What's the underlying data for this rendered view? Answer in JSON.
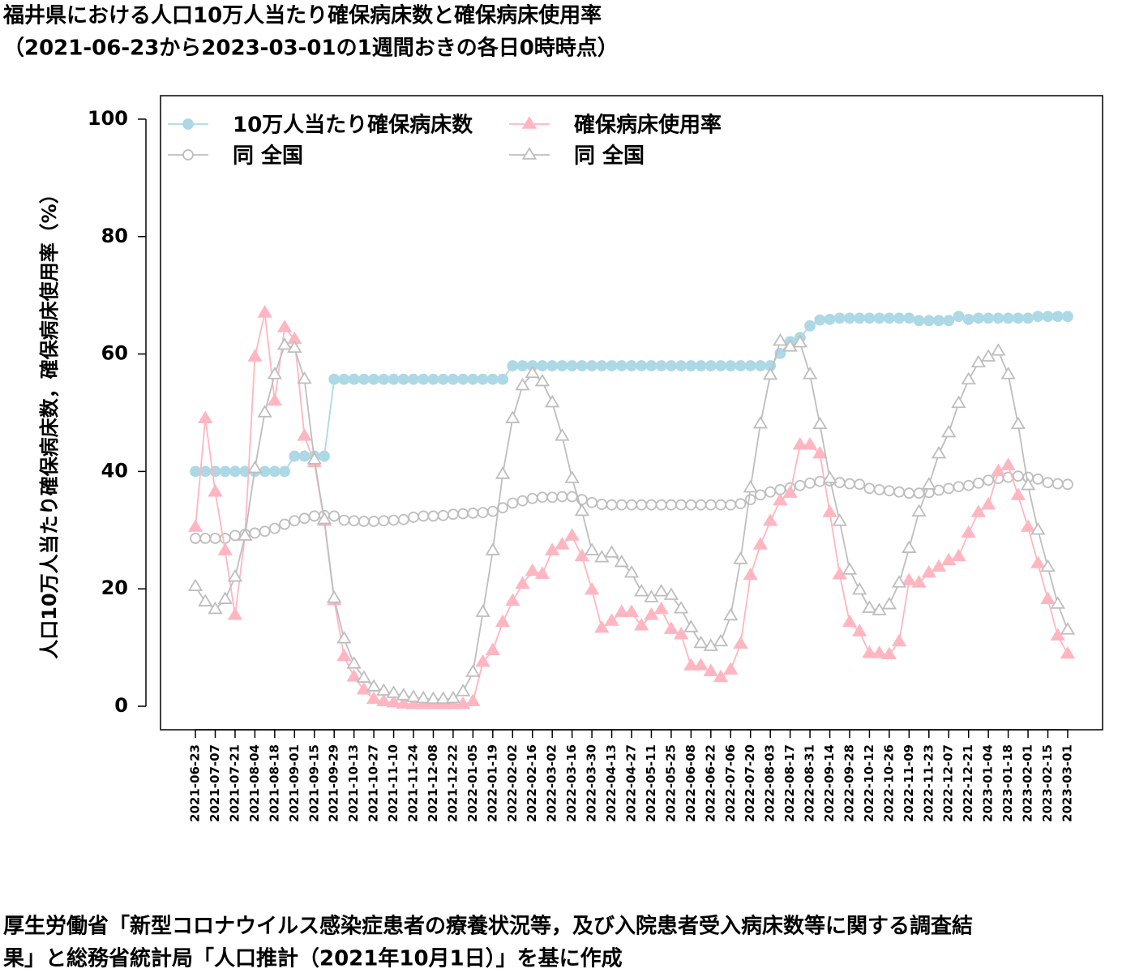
{
  "chart_data": {
    "type": "line",
    "title": [
      "福井県における人口10万人当たり確保病床数と確保病床使用率",
      "（2021-06-23から2023-03-01の1週間おきの各日0時時点）"
    ],
    "ylabel": "人口10万人当たり確保病床数，確保病床使用率（%）",
    "source": [
      "厚生労働省「新型コロナウイルス感染症患者の療養状況等，及び入院患者受入病床数等に関する調査結",
      "果」と総務省統計局「人口推計（2021年10月1日）」を基に作成"
    ],
    "categories": [
      "2021-06-23",
      null,
      "2021-07-07",
      null,
      "2021-07-21",
      null,
      "2021-08-04",
      null,
      "2021-08-18",
      null,
      "2021-09-01",
      null,
      "2021-09-15",
      null,
      "2021-09-29",
      null,
      "2021-10-13",
      null,
      "2021-10-27",
      null,
      "2021-11-10",
      null,
      "2021-11-24",
      null,
      "2021-12-08",
      null,
      "2021-12-22",
      null,
      "2022-01-05",
      null,
      "2022-01-19",
      null,
      "2022-02-02",
      null,
      "2022-02-16",
      null,
      "2022-03-02",
      null,
      "2022-03-16",
      null,
      "2022-03-30",
      null,
      "2022-04-13",
      null,
      "2022-04-27",
      null,
      "2022-05-11",
      null,
      "2022-05-25",
      null,
      "2022-06-08",
      null,
      "2022-06-22",
      null,
      "2022-07-06",
      null,
      "2022-07-20",
      null,
      "2022-08-03",
      null,
      "2022-08-17",
      null,
      "2022-08-31",
      null,
      "2022-09-14",
      null,
      "2022-09-28",
      null,
      "2022-10-12",
      null,
      "2022-10-26",
      null,
      "2022-11-09",
      null,
      "2022-11-23",
      null,
      "2022-12-07",
      null,
      "2022-12-21",
      null,
      "2023-01-04",
      null,
      "2023-01-18",
      null,
      "2023-02-01",
      null,
      "2023-02-15",
      null,
      "2023-03-01"
    ],
    "series": [
      {
        "name": "10万人当たり確保病床数",
        "color": "#add8e6",
        "marker": "circle",
        "filled": true,
        "values": [
          40,
          40,
          40,
          40,
          40,
          40,
          40,
          40,
          40,
          40,
          42.6,
          42.6,
          42.6,
          42.6,
          55.7,
          55.7,
          55.7,
          55.7,
          55.7,
          55.7,
          55.7,
          55.7,
          55.7,
          55.7,
          55.7,
          55.7,
          55.7,
          55.7,
          55.7,
          55.7,
          55.7,
          55.7,
          58,
          58,
          58,
          58,
          58,
          58,
          58,
          58,
          58,
          58,
          58,
          58,
          58,
          58,
          58,
          58,
          58,
          58,
          58,
          58,
          58,
          58,
          58,
          58,
          58,
          58,
          58,
          60.1,
          62.1,
          62.8,
          64.8,
          65.8,
          65.9,
          66.1,
          66.1,
          66.1,
          66.1,
          66.1,
          66.1,
          66.1,
          66.1,
          65.7,
          65.7,
          65.7,
          65.7,
          66.4,
          65.9,
          66.1,
          66.1,
          66.1,
          66.1,
          66.1,
          66.1,
          66.4,
          66.4,
          66.4,
          66.4
        ]
      },
      {
        "name": "同 全国",
        "color": "#bebebe",
        "marker": "circle",
        "filled": false,
        "values": [
          28.6,
          28.6,
          28.6,
          28.6,
          29.1,
          29.3,
          29.5,
          29.8,
          30.3,
          31,
          31.6,
          32,
          32.4,
          32.5,
          32.4,
          31.7,
          31.6,
          31.5,
          31.5,
          31.6,
          31.7,
          31.8,
          32.2,
          32.4,
          32.4,
          32.5,
          32.7,
          32.8,
          32.9,
          33,
          33.2,
          33.8,
          34.6,
          35,
          35.4,
          35.6,
          35.6,
          35.7,
          35.7,
          35.2,
          34.7,
          34.4,
          34.3,
          34.3,
          34.3,
          34.3,
          34.3,
          34.3,
          34.3,
          34.3,
          34.3,
          34.3,
          34.3,
          34.3,
          34.3,
          34.5,
          35.2,
          36,
          36.5,
          36.9,
          37.2,
          37.6,
          38,
          38.3,
          38.4,
          38.1,
          37.9,
          37.8,
          37.1,
          36.9,
          36.7,
          36.5,
          36.3,
          36.3,
          36.4,
          36.8,
          37.1,
          37.4,
          37.6,
          38,
          38.5,
          38.8,
          39,
          39.2,
          39,
          38.7,
          38.1,
          37.9,
          37.8
        ]
      },
      {
        "name": "確保病床使用率",
        "color": "#ffb6c1",
        "marker": "triangle",
        "filled": true,
        "values": [
          30.5,
          49,
          36.5,
          26.5,
          15.5,
          29,
          59.5,
          67,
          52,
          64.5,
          62.5,
          46,
          41.5,
          31.5,
          18,
          8.5,
          5,
          2.8,
          1.2,
          0.8,
          0.6,
          0.4,
          0.3,
          0.3,
          0.3,
          0.3,
          0.3,
          0.3,
          0.8,
          7.5,
          9.5,
          14.3,
          17.9,
          20.8,
          23,
          22.5,
          26.5,
          27.5,
          29,
          25.5,
          19.8,
          13.3,
          14.5,
          16,
          16,
          13.7,
          15.5,
          16.5,
          13.1,
          12.2,
          6.9,
          6.9,
          5.9,
          4.9,
          6.2,
          10.6,
          22.3,
          27.5,
          31.5,
          35,
          36.3,
          44.5,
          44.5,
          43,
          33,
          22.4,
          14.3,
          12.7,
          9,
          9,
          8.8,
          11,
          21.4,
          21,
          22.7,
          23.7,
          24.8,
          25.5,
          29.5,
          33,
          34.3,
          40,
          41,
          35.9,
          30.5,
          24.3,
          18.2,
          12,
          8.9
        ]
      },
      {
        "name": "同 全国",
        "color": "#bebebe",
        "marker": "triangle",
        "filled": false,
        "values": [
          20.4,
          17.8,
          16.5,
          18.2,
          22,
          29,
          40.5,
          50,
          56.5,
          61.5,
          61,
          55.7,
          42,
          31.8,
          18.4,
          11.5,
          7.2,
          4.8,
          3.3,
          2.6,
          2.2,
          1.8,
          1.5,
          1.3,
          1.2,
          1.2,
          1.3,
          2.5,
          5.8,
          16,
          26.5,
          39.5,
          49,
          54.6,
          56.7,
          55.3,
          51.7,
          46,
          38.8,
          33.2,
          26.5,
          25.3,
          26.1,
          24.5,
          22.7,
          19.5,
          18.5,
          19.5,
          18.9,
          16.6,
          13.4,
          10.7,
          10.2,
          11,
          15.4,
          25,
          37.2,
          48.1,
          56.4,
          62.2,
          61.2,
          61.9,
          56.5,
          48,
          38.8,
          31.5,
          23.2,
          19.8,
          16.7,
          16.3,
          17.3,
          21,
          26.9,
          33.1,
          37.7,
          43,
          46.6,
          51.6,
          55.6,
          58.5,
          59.5,
          60.5,
          56.5,
          48,
          37.6,
          30,
          23.7,
          17.4,
          13
        ]
      }
    ],
    "ylim": [
      -4,
      104
    ],
    "yticks": [
      0,
      20,
      40,
      60,
      80,
      100
    ],
    "legend": "topleft",
    "grid": false
  }
}
